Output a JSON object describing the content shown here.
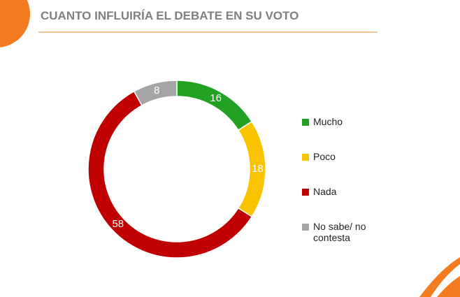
{
  "chart_data": {
    "type": "donut",
    "title": "CUANTO INFLUIRÍA EL DEBATE EN SU VOTO",
    "categories": [
      "Mucho",
      "Poco",
      "Nada",
      "No sabe/ no contesta"
    ],
    "values": [
      16,
      18,
      58,
      8
    ],
    "colors": [
      "#22a122",
      "#f9c300",
      "#c00000",
      "#a5a5a5"
    ],
    "legend": "right"
  }
}
